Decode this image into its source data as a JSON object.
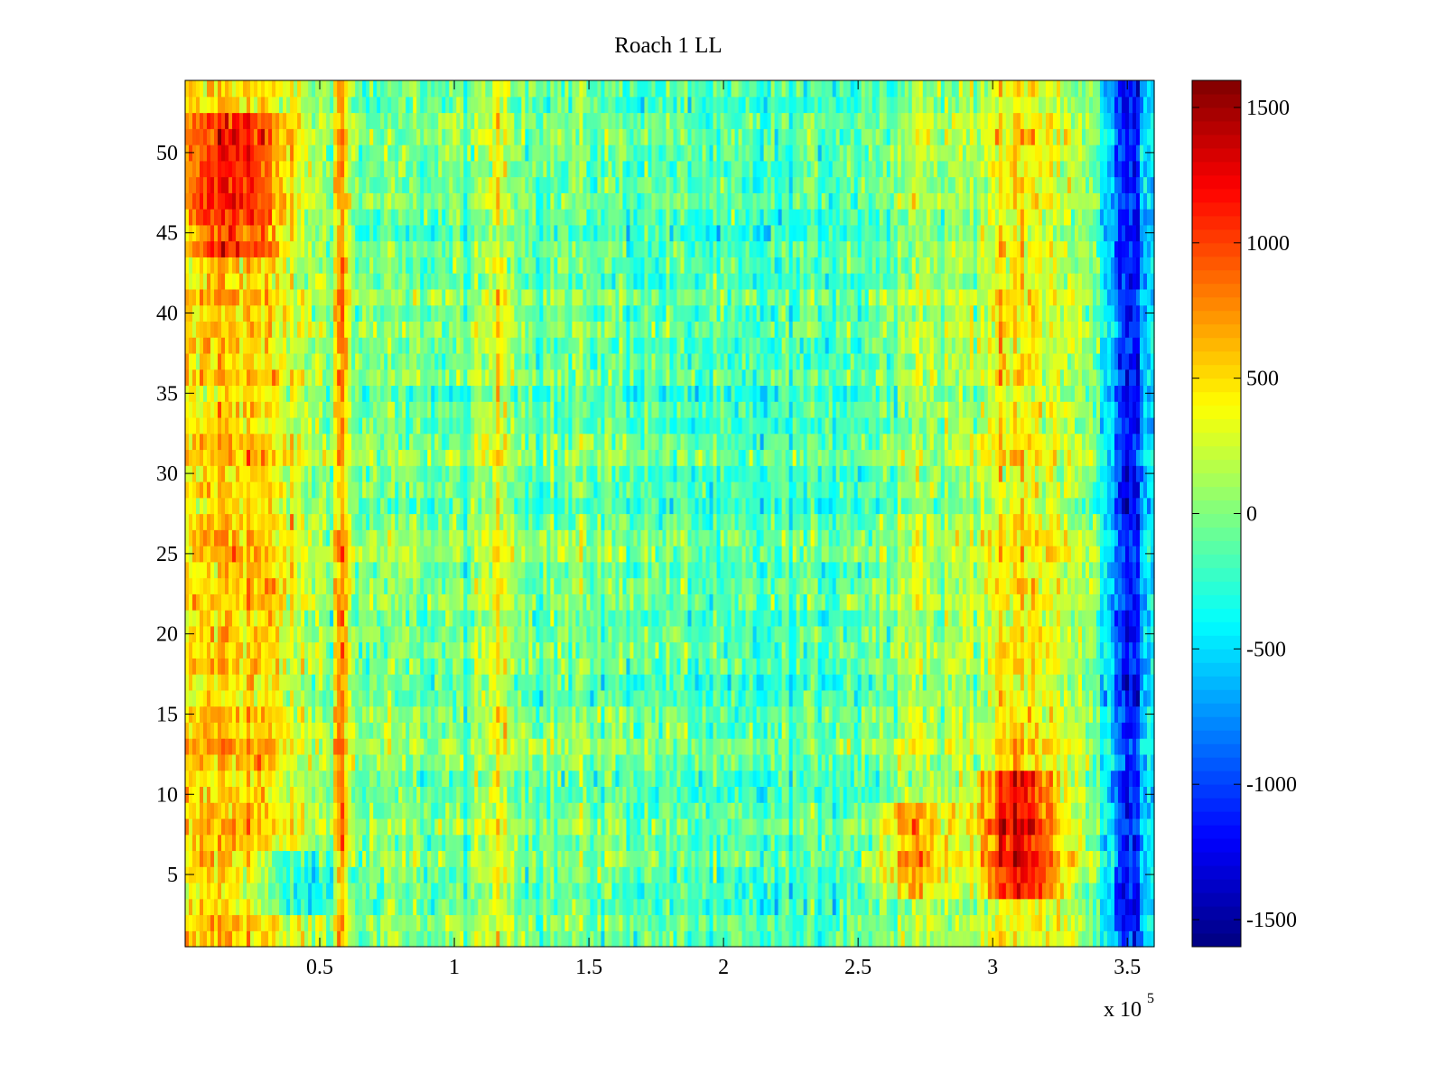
{
  "chart_data": {
    "type": "heatmap",
    "title": "Roach 1 LL",
    "xlabel": "",
    "ylabel": "",
    "x_multiplier": "x 10",
    "x_exponent": "5",
    "xlim": [
      0,
      3.6
    ],
    "ylim": [
      0.5,
      54.5
    ],
    "x_ticks": [
      0.5,
      1,
      1.5,
      2,
      2.5,
      3,
      3.5
    ],
    "x_tick_labels": [
      "0.5",
      "1",
      "1.5",
      "2",
      "2.5",
      "3",
      "3.5"
    ],
    "y_ticks": [
      5,
      10,
      15,
      20,
      25,
      30,
      35,
      40,
      45,
      50
    ],
    "y_tick_labels": [
      "5",
      "10",
      "15",
      "20",
      "25",
      "30",
      "35",
      "40",
      "45",
      "50"
    ],
    "colorbar": {
      "colormap": "jet",
      "clim": [
        -1600,
        1600
      ],
      "ticks": [
        -1500,
        -1000,
        -500,
        0,
        500,
        1000,
        1500
      ],
      "tick_labels": [
        "-1500",
        "-1000",
        "-500",
        "0",
        "500",
        "1000",
        "1500"
      ]
    },
    "rows": 54,
    "features": [
      {
        "x": 0.17,
        "w": 0.4,
        "amp": 650,
        "rows": "all"
      },
      {
        "x": 0.58,
        "w": 0.04,
        "amp": 750,
        "rows": "all"
      },
      {
        "x": 1.17,
        "w": 0.09,
        "amp": 380,
        "rows": "all"
      },
      {
        "x": 3.1,
        "w": 0.33,
        "amp": 450,
        "rows": "all"
      },
      {
        "x": 2.7,
        "w": 0.12,
        "amp": 260,
        "rows": "all"
      },
      {
        "x": 3.1,
        "w": 0.22,
        "amp": 800,
        "rows": [
          4,
          11
        ]
      },
      {
        "x": 2.7,
        "w": 0.2,
        "amp": 500,
        "rows": [
          4,
          9
        ]
      },
      {
        "x": 0.17,
        "w": 0.3,
        "amp": 550,
        "rows": [
          44,
          52
        ]
      },
      {
        "x": 3.5,
        "w": 0.12,
        "amp": -1100,
        "rows": "all"
      },
      {
        "x": 0.4,
        "w": 0.25,
        "amp": -500,
        "rows": [
          3,
          6
        ]
      },
      {
        "x": 2.1,
        "w": 0.5,
        "amp": -180,
        "rows": "all"
      }
    ],
    "base_value": -50
  }
}
